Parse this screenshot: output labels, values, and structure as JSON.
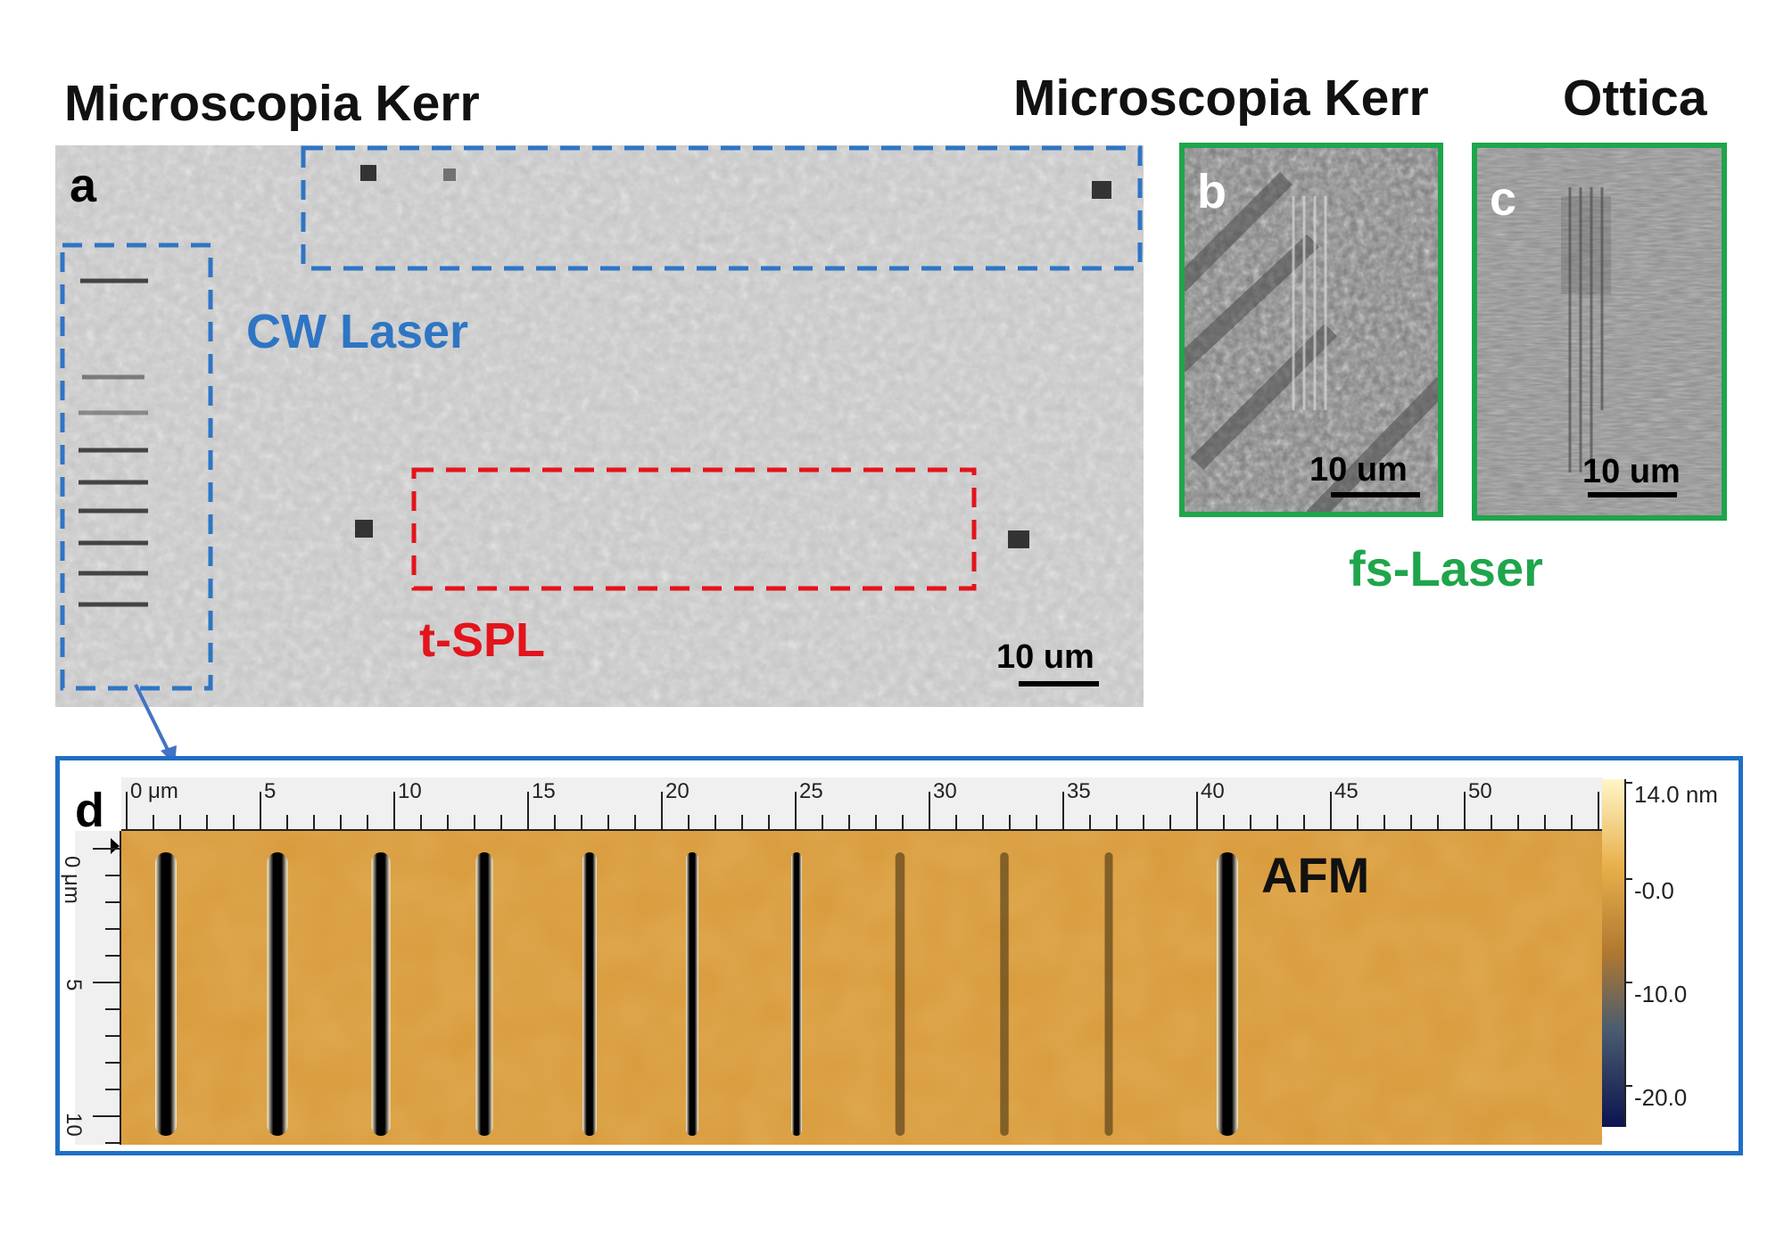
{
  "titles": {
    "left_kerr": "Microscopia Kerr",
    "right_kerr": "Microscopia Kerr",
    "optics": "Ottica"
  },
  "panels": {
    "a": {
      "letter": "a",
      "scale_bar": "10 um"
    },
    "b": {
      "letter": "b",
      "scale_bar": "10 um"
    },
    "c": {
      "letter": "c",
      "scale_bar": "10 um"
    },
    "d": {
      "letter": "d",
      "label": "AFM"
    }
  },
  "regions": {
    "cw_laser": {
      "label": "CW Laser",
      "color": "#2e75c4"
    },
    "t_spl": {
      "label": "t-SPL",
      "color": "#e3141c"
    },
    "fs_laser": {
      "label": "fs-Laser",
      "color": "#1fa54b"
    }
  },
  "afm": {
    "x_ruler_ticks": [
      "0 μm",
      "5",
      "10",
      "15",
      "20",
      "25",
      "30",
      "35",
      "40",
      "45",
      "50"
    ],
    "y_ruler_ticks": [
      "0 μm",
      "5",
      "10"
    ],
    "colorbar_ticks": [
      "14.0 nm",
      "-0.0",
      "-10.0",
      "-20.0"
    ],
    "frame_color": "#1f6fc4",
    "surface_color": "#d89a3a"
  }
}
